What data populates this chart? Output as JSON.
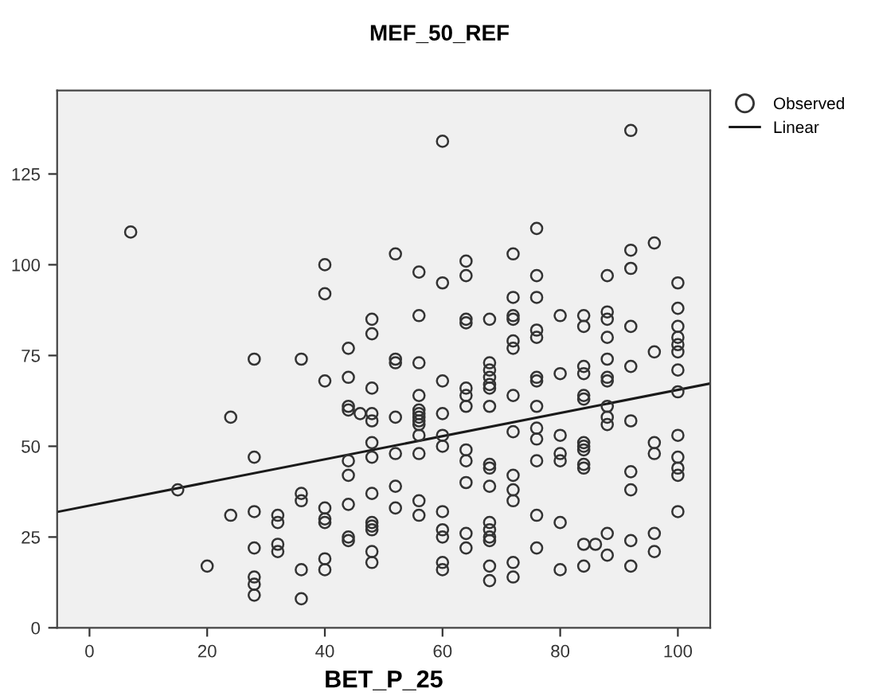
{
  "chart_data": {
    "type": "scatter",
    "title": "MEF_50_REF",
    "xlabel": "BET_P_25",
    "xlim": [
      -5.5,
      105.5
    ],
    "ylim": [
      0,
      148
    ],
    "xticks": [
      0,
      20,
      40,
      60,
      80,
      100
    ],
    "yticks": [
      0,
      25,
      50,
      75,
      100,
      125
    ],
    "grid": false,
    "legend": "top right",
    "marker": "circle",
    "series": [
      {
        "name": "Observed",
        "color": "#333333",
        "x": [
          7,
          15,
          20,
          24,
          24,
          28,
          28,
          28,
          28,
          28,
          28,
          28,
          32,
          32,
          32,
          32,
          36,
          36,
          36,
          36,
          36,
          40,
          40,
          40,
          40,
          40,
          40,
          40,
          40,
          44,
          44,
          44,
          44,
          44,
          44,
          44,
          44,
          44,
          46,
          48,
          48,
          48,
          48,
          48,
          48,
          48,
          48,
          48,
          48,
          48,
          48,
          48,
          52,
          52,
          52,
          52,
          52,
          52,
          52,
          56,
          56,
          56,
          56,
          56,
          56,
          56,
          56,
          56,
          56,
          56,
          56,
          56,
          60,
          60,
          60,
          60,
          60,
          60,
          60,
          60,
          60,
          60,
          60,
          64,
          64,
          64,
          64,
          64,
          64,
          64,
          64,
          64,
          64,
          64,
          64,
          68,
          68,
          68,
          68,
          68,
          68,
          68,
          68,
          68,
          68,
          68,
          68,
          68,
          68,
          68,
          68,
          72,
          72,
          72,
          72,
          72,
          72,
          72,
          72,
          72,
          72,
          72,
          72,
          72,
          76,
          76,
          76,
          76,
          76,
          76,
          76,
          76,
          76,
          76,
          76,
          76,
          76,
          80,
          80,
          80,
          80,
          80,
          80,
          80,
          84,
          84,
          84,
          84,
          84,
          84,
          84,
          84,
          84,
          84,
          84,
          84,
          84,
          86,
          88,
          88,
          88,
          88,
          88,
          88,
          88,
          88,
          88,
          88,
          88,
          88,
          92,
          92,
          92,
          92,
          92,
          92,
          92,
          92,
          92,
          92,
          96,
          96,
          96,
          96,
          96,
          96,
          100,
          100,
          100,
          100,
          100,
          100,
          100,
          100,
          100,
          100,
          100,
          100,
          100
        ],
        "values": [
          109,
          38,
          17,
          58,
          31,
          74,
          47,
          32,
          22,
          14,
          12,
          9,
          31,
          29,
          23,
          21,
          74,
          37,
          35,
          16,
          8,
          100,
          92,
          68,
          33,
          30,
          29,
          19,
          16,
          77,
          69,
          61,
          60,
          46,
          42,
          34,
          25,
          24,
          59,
          85,
          81,
          66,
          59,
          57,
          51,
          47,
          37,
          29,
          28,
          27,
          21,
          18,
          103,
          74,
          73,
          58,
          48,
          39,
          33,
          98,
          86,
          73,
          64,
          60,
          59,
          58,
          57,
          56,
          53,
          48,
          35,
          31,
          134,
          95,
          68,
          59,
          53,
          50,
          32,
          27,
          25,
          18,
          16,
          101,
          97,
          85,
          84,
          66,
          64,
          61,
          49,
          46,
          40,
          26,
          22,
          85,
          73,
          71,
          69,
          67,
          66,
          61,
          45,
          44,
          39,
          29,
          27,
          25,
          24,
          17,
          13,
          103,
          91,
          86,
          85,
          79,
          77,
          64,
          54,
          42,
          38,
          35,
          18,
          14,
          110,
          97,
          91,
          82,
          80,
          69,
          68,
          61,
          55,
          52,
          46,
          31,
          22,
          86,
          70,
          53,
          48,
          46,
          29,
          16,
          86,
          83,
          72,
          70,
          64,
          63,
          51,
          50,
          49,
          45,
          44,
          23,
          17,
          23,
          97,
          87,
          85,
          80,
          74,
          69,
          68,
          61,
          58,
          56,
          26,
          20,
          137,
          104,
          99,
          83,
          72,
          57,
          43,
          38,
          24,
          17,
          106,
          76,
          51,
          48,
          26,
          21,
          95,
          88,
          83,
          80,
          78,
          76,
          71,
          65,
          53,
          47,
          44,
          42,
          32
        ]
      },
      {
        "name": "Linear",
        "type": "line",
        "color": "#1a1a1a",
        "marker": "none",
        "x": [
          -5.5,
          105.5
        ],
        "values": [
          31.9,
          67.3
        ]
      }
    ]
  }
}
